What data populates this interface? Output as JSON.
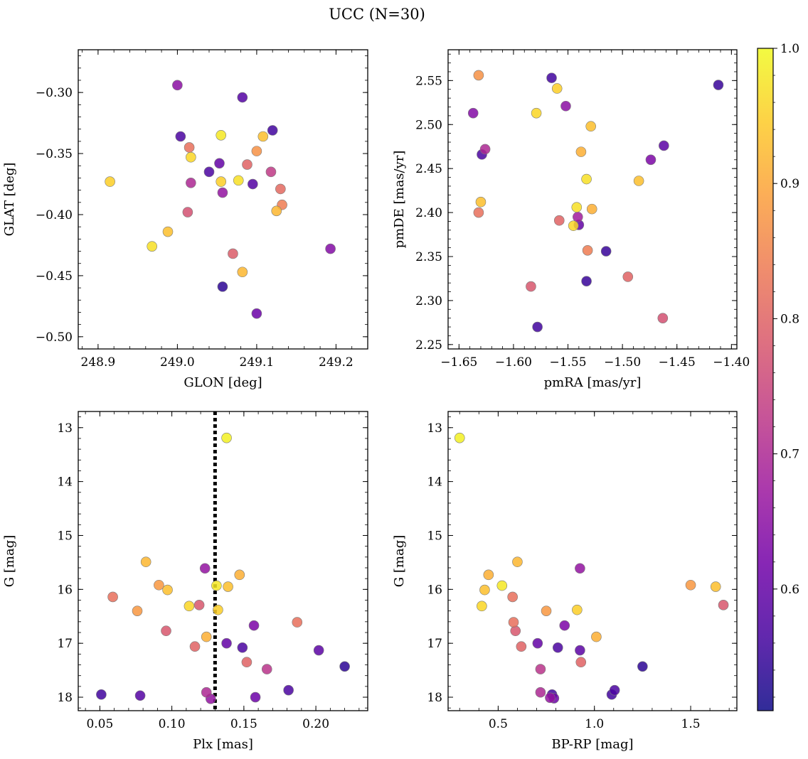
{
  "title": "UCC (N=30)",
  "colorbar": {
    "range": [
      0.51,
      1.0
    ],
    "ticks": [
      0.6,
      0.7,
      0.8,
      0.9,
      1.0
    ],
    "tick_labels": [
      "0.6",
      "0.7",
      "0.8",
      "0.9",
      "1.0"
    ],
    "colormap": "plasma",
    "stops": [
      "#0d0887",
      "#46039f",
      "#7201a8",
      "#9c179e",
      "#bd3786",
      "#d8576b",
      "#ed7953",
      "#fb9f3a",
      "#fdca26",
      "#f0f921"
    ]
  },
  "chart_data": [
    {
      "type": "scatter",
      "xlabel": "GLON [deg]",
      "ylabel": "GLAT [deg]",
      "xlim": [
        248.875,
        249.24
      ],
      "ylim": [
        -0.51,
        -0.265
      ],
      "xticks": [
        248.9,
        249.0,
        249.1,
        249.2
      ],
      "xtick_labels": [
        "248.9",
        "249.0",
        "249.1",
        "249.2"
      ],
      "yticks": [
        -0.5,
        -0.45,
        -0.4,
        -0.35,
        -0.3
      ],
      "ytick_labels": [
        "−0.50",
        "−0.45",
        "−0.40",
        "−0.35",
        "−0.30"
      ],
      "invert_y": false,
      "points": [
        {
          "x": 248.915,
          "y": -0.373,
          "c": 0.95
        },
        {
          "x": 248.968,
          "y": -0.426,
          "c": 0.97
        },
        {
          "x": 248.988,
          "y": -0.414,
          "c": 0.93
        },
        {
          "x": 249.0,
          "y": -0.294,
          "c": 0.65
        },
        {
          "x": 249.004,
          "y": -0.336,
          "c": 0.57
        },
        {
          "x": 249.013,
          "y": -0.398,
          "c": 0.77
        },
        {
          "x": 249.015,
          "y": -0.345,
          "c": 0.82
        },
        {
          "x": 249.017,
          "y": -0.374,
          "c": 0.7
        },
        {
          "x": 249.017,
          "y": -0.353,
          "c": 0.96
        },
        {
          "x": 249.04,
          "y": -0.365,
          "c": 0.57
        },
        {
          "x": 249.053,
          "y": -0.358,
          "c": 0.6
        },
        {
          "x": 249.055,
          "y": -0.335,
          "c": 0.98
        },
        {
          "x": 249.055,
          "y": -0.373,
          "c": 0.95
        },
        {
          "x": 249.057,
          "y": -0.382,
          "c": 0.66
        },
        {
          "x": 249.057,
          "y": -0.459,
          "c": 0.54
        },
        {
          "x": 249.07,
          "y": -0.432,
          "c": 0.79
        },
        {
          "x": 249.077,
          "y": -0.372,
          "c": 0.97
        },
        {
          "x": 249.082,
          "y": -0.304,
          "c": 0.58
        },
        {
          "x": 249.082,
          "y": -0.447,
          "c": 0.92
        },
        {
          "x": 249.088,
          "y": -0.359,
          "c": 0.8
        },
        {
          "x": 249.095,
          "y": -0.375,
          "c": 0.58
        },
        {
          "x": 249.1,
          "y": -0.348,
          "c": 0.87
        },
        {
          "x": 249.1,
          "y": -0.481,
          "c": 0.61
        },
        {
          "x": 249.108,
          "y": -0.336,
          "c": 0.93
        },
        {
          "x": 249.118,
          "y": -0.365,
          "c": 0.73
        },
        {
          "x": 249.12,
          "y": -0.331,
          "c": 0.56
        },
        {
          "x": 249.125,
          "y": -0.397,
          "c": 0.92
        },
        {
          "x": 249.13,
          "y": -0.379,
          "c": 0.81
        },
        {
          "x": 249.132,
          "y": -0.392,
          "c": 0.84
        },
        {
          "x": 249.193,
          "y": -0.428,
          "c": 0.64
        }
      ]
    },
    {
      "type": "scatter",
      "xlabel": "pmRA [mas/yr]",
      "ylabel": "pmDE [mas/yr]",
      "xlim": [
        -1.66,
        -1.395
      ],
      "ylim": [
        2.245,
        2.585
      ],
      "xticks": [
        -1.65,
        -1.6,
        -1.55,
        -1.5,
        -1.45,
        -1.4
      ],
      "xtick_labels": [
        "−1.65",
        "−1.60",
        "−1.55",
        "−1.50",
        "−1.45",
        "−1.40"
      ],
      "yticks": [
        2.25,
        2.3,
        2.35,
        2.4,
        2.45,
        2.5,
        2.55
      ],
      "ytick_labels": [
        "2.25",
        "2.30",
        "2.35",
        "2.40",
        "2.45",
        "2.50",
        "2.55"
      ],
      "invert_y": false,
      "points": [
        {
          "x": -1.637,
          "y": 2.513,
          "c": 0.64
        },
        {
          "x": -1.632,
          "y": 2.556,
          "c": 0.87
        },
        {
          "x": -1.632,
          "y": 2.4,
          "c": 0.82
        },
        {
          "x": -1.63,
          "y": 2.412,
          "c": 0.93
        },
        {
          "x": -1.629,
          "y": 2.466,
          "c": 0.57
        },
        {
          "x": -1.626,
          "y": 2.472,
          "c": 0.7
        },
        {
          "x": -1.584,
          "y": 2.316,
          "c": 0.78
        },
        {
          "x": -1.579,
          "y": 2.513,
          "c": 0.96
        },
        {
          "x": -1.578,
          "y": 2.27,
          "c": 0.56
        },
        {
          "x": -1.565,
          "y": 2.553,
          "c": 0.56
        },
        {
          "x": -1.56,
          "y": 2.541,
          "c": 0.95
        },
        {
          "x": -1.558,
          "y": 2.391,
          "c": 0.8
        },
        {
          "x": -1.552,
          "y": 2.521,
          "c": 0.65
        },
        {
          "x": -1.545,
          "y": 2.385,
          "c": 0.96
        },
        {
          "x": -1.542,
          "y": 2.406,
          "c": 0.97
        },
        {
          "x": -1.541,
          "y": 2.395,
          "c": 0.68
        },
        {
          "x": -1.54,
          "y": 2.386,
          "c": 0.6
        },
        {
          "x": -1.538,
          "y": 2.469,
          "c": 0.91
        },
        {
          "x": -1.533,
          "y": 2.438,
          "c": 0.97
        },
        {
          "x": -1.533,
          "y": 2.322,
          "c": 0.55
        },
        {
          "x": -1.532,
          "y": 2.357,
          "c": 0.84
        },
        {
          "x": -1.529,
          "y": 2.498,
          "c": 0.93
        },
        {
          "x": -1.528,
          "y": 2.404,
          "c": 0.91
        },
        {
          "x": -1.515,
          "y": 2.356,
          "c": 0.55
        },
        {
          "x": -1.495,
          "y": 2.327,
          "c": 0.8
        },
        {
          "x": -1.485,
          "y": 2.436,
          "c": 0.93
        },
        {
          "x": -1.474,
          "y": 2.46,
          "c": 0.63
        },
        {
          "x": -1.463,
          "y": 2.28,
          "c": 0.77
        },
        {
          "x": -1.462,
          "y": 2.476,
          "c": 0.59
        },
        {
          "x": -1.412,
          "y": 2.545,
          "c": 0.55
        }
      ]
    },
    {
      "type": "scatter",
      "xlabel": "Plx [mas]",
      "ylabel": "G [mag]",
      "xlim": [
        0.035,
        0.236
      ],
      "ylim": [
        18.25,
        12.7
      ],
      "xticks": [
        0.05,
        0.1,
        0.15,
        0.2
      ],
      "xtick_labels": [
        "0.05",
        "0.10",
        "0.15",
        "0.20"
      ],
      "yticks": [
        13,
        14,
        15,
        16,
        17,
        18
      ],
      "ytick_labels": [
        "13",
        "14",
        "15",
        "16",
        "17",
        "18"
      ],
      "invert_y": true,
      "vline": {
        "x": 0.13
      },
      "points": [
        {
          "x": 0.051,
          "y": 17.95,
          "c": 0.56
        },
        {
          "x": 0.059,
          "y": 16.14,
          "c": 0.82
        },
        {
          "x": 0.076,
          "y": 16.4,
          "c": 0.88
        },
        {
          "x": 0.078,
          "y": 17.97,
          "c": 0.58
        },
        {
          "x": 0.082,
          "y": 15.49,
          "c": 0.92
        },
        {
          "x": 0.091,
          "y": 15.92,
          "c": 0.88
        },
        {
          "x": 0.096,
          "y": 16.77,
          "c": 0.78
        },
        {
          "x": 0.097,
          "y": 16.01,
          "c": 0.93
        },
        {
          "x": 0.112,
          "y": 16.31,
          "c": 0.96
        },
        {
          "x": 0.116,
          "y": 17.06,
          "c": 0.8
        },
        {
          "x": 0.119,
          "y": 16.29,
          "c": 0.78
        },
        {
          "x": 0.123,
          "y": 15.61,
          "c": 0.66
        },
        {
          "x": 0.124,
          "y": 16.88,
          "c": 0.91
        },
        {
          "x": 0.124,
          "y": 17.91,
          "c": 0.7
        },
        {
          "x": 0.127,
          "y": 18.03,
          "c": 0.66
        },
        {
          "x": 0.131,
          "y": 15.93,
          "c": 0.98
        },
        {
          "x": 0.132,
          "y": 16.38,
          "c": 0.95
        },
        {
          "x": 0.138,
          "y": 13.19,
          "c": 0.99
        },
        {
          "x": 0.138,
          "y": 17.0,
          "c": 0.6
        },
        {
          "x": 0.139,
          "y": 15.95,
          "c": 0.93
        },
        {
          "x": 0.147,
          "y": 15.73,
          "c": 0.91
        },
        {
          "x": 0.149,
          "y": 17.08,
          "c": 0.57
        },
        {
          "x": 0.152,
          "y": 17.35,
          "c": 0.8
        },
        {
          "x": 0.157,
          "y": 16.67,
          "c": 0.63
        },
        {
          "x": 0.158,
          "y": 18.0,
          "c": 0.61
        },
        {
          "x": 0.166,
          "y": 17.48,
          "c": 0.72
        },
        {
          "x": 0.181,
          "y": 17.87,
          "c": 0.57
        },
        {
          "x": 0.187,
          "y": 16.61,
          "c": 0.82
        },
        {
          "x": 0.202,
          "y": 17.13,
          "c": 0.59
        },
        {
          "x": 0.22,
          "y": 17.43,
          "c": 0.54
        }
      ]
    },
    {
      "type": "scatter",
      "xlabel": "BP-RP [mag]",
      "ylabel": "G [mag]",
      "xlim": [
        0.24,
        1.74
      ],
      "ylim": [
        18.25,
        12.7
      ],
      "xticks": [
        0.5,
        1.0,
        1.5
      ],
      "xtick_labels": [
        "0.5",
        "1.0",
        "1.5"
      ],
      "yticks": [
        13,
        14,
        15,
        16,
        17,
        18
      ],
      "ytick_labels": [
        "13",
        "14",
        "15",
        "16",
        "17",
        "18"
      ],
      "invert_y": true,
      "points": [
        {
          "x": 0.3,
          "y": 13.19,
          "c": 0.99
        },
        {
          "x": 0.415,
          "y": 16.31,
          "c": 0.96
        },
        {
          "x": 0.43,
          "y": 16.01,
          "c": 0.93
        },
        {
          "x": 0.45,
          "y": 15.73,
          "c": 0.91
        },
        {
          "x": 0.52,
          "y": 15.93,
          "c": 0.98
        },
        {
          "x": 0.575,
          "y": 16.14,
          "c": 0.82
        },
        {
          "x": 0.58,
          "y": 16.61,
          "c": 0.82
        },
        {
          "x": 0.59,
          "y": 16.77,
          "c": 0.78
        },
        {
          "x": 0.6,
          "y": 15.49,
          "c": 0.92
        },
        {
          "x": 0.62,
          "y": 17.06,
          "c": 0.8
        },
        {
          "x": 0.705,
          "y": 17.0,
          "c": 0.6
        },
        {
          "x": 0.72,
          "y": 17.48,
          "c": 0.72
        },
        {
          "x": 0.72,
          "y": 17.91,
          "c": 0.7
        },
        {
          "x": 0.75,
          "y": 16.4,
          "c": 0.88
        },
        {
          "x": 0.77,
          "y": 18.01,
          "c": 0.66
        },
        {
          "x": 0.78,
          "y": 17.95,
          "c": 0.56
        },
        {
          "x": 0.79,
          "y": 18.02,
          "c": 0.61
        },
        {
          "x": 0.81,
          "y": 17.08,
          "c": 0.57
        },
        {
          "x": 0.845,
          "y": 16.67,
          "c": 0.63
        },
        {
          "x": 0.91,
          "y": 16.38,
          "c": 0.95
        },
        {
          "x": 0.925,
          "y": 15.61,
          "c": 0.66
        },
        {
          "x": 0.925,
          "y": 17.13,
          "c": 0.59
        },
        {
          "x": 0.93,
          "y": 17.35,
          "c": 0.8
        },
        {
          "x": 1.01,
          "y": 16.88,
          "c": 0.91
        },
        {
          "x": 1.09,
          "y": 17.95,
          "c": 0.56
        },
        {
          "x": 1.105,
          "y": 17.87,
          "c": 0.57
        },
        {
          "x": 1.25,
          "y": 17.43,
          "c": 0.54
        },
        {
          "x": 1.5,
          "y": 15.92,
          "c": 0.88
        },
        {
          "x": 1.63,
          "y": 15.95,
          "c": 0.93
        },
        {
          "x": 1.67,
          "y": 16.29,
          "c": 0.78
        }
      ]
    }
  ]
}
